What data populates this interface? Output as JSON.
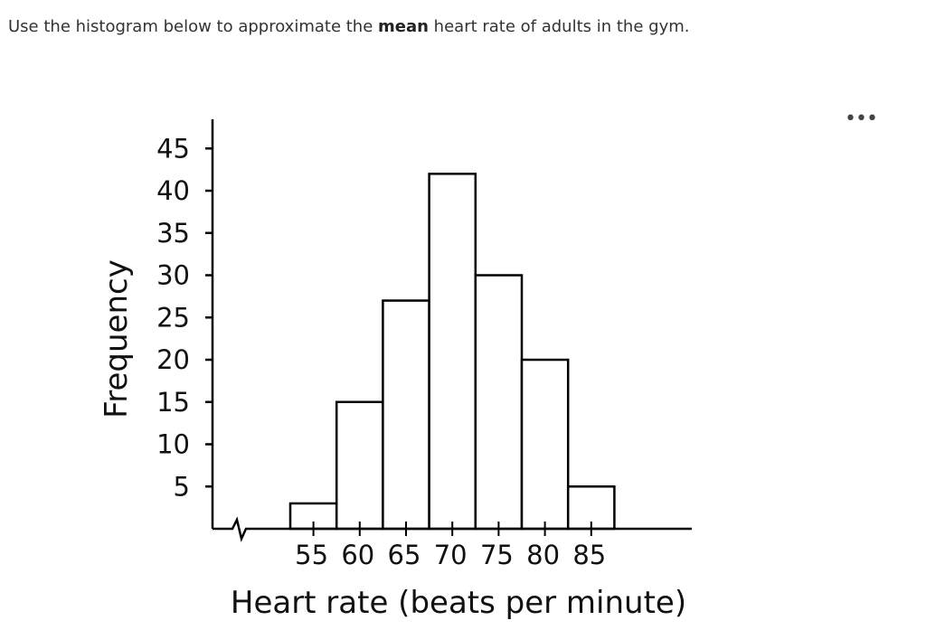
{
  "question": {
    "prefix": "Use the histogram below to approximate the ",
    "emphasis": "mean",
    "suffix": " heart rate of adults in the gym."
  },
  "more_label": "•••",
  "colors": {
    "bar_fill": "#ffffff",
    "stroke": "#000000",
    "text": "#111111"
  },
  "chart_data": {
    "type": "bar",
    "title": "",
    "xlabel": "Heart rate (beats per minute)",
    "ylabel": "Frequency",
    "x_ticks": [
      "55",
      "60",
      "65",
      "70",
      "75",
      "80",
      "85"
    ],
    "y_ticks": [
      "5",
      "10",
      "15",
      "20",
      "25",
      "30",
      "35",
      "40",
      "45"
    ],
    "bins": [
      {
        "label": "55",
        "value": 3
      },
      {
        "label": "60",
        "value": 15
      },
      {
        "label": "65",
        "value": 27
      },
      {
        "label": "70",
        "value": 42
      },
      {
        "label": "75",
        "value": 30
      },
      {
        "label": "80",
        "value": 20
      },
      {
        "label": "85",
        "value": 5
      }
    ],
    "ylim": [
      0,
      48
    ],
    "axis_break": true,
    "grid": false
  }
}
